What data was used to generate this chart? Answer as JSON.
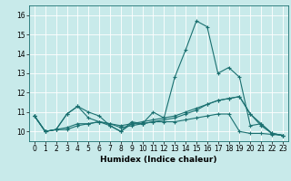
{
  "xlabel": "Humidex (Indice chaleur)",
  "ylabel": "",
  "bg_color": "#c8eaea",
  "line_color": "#1a7070",
  "grid_color": "#ffffff",
  "xlim": [
    -0.5,
    23.5
  ],
  "ylim": [
    9.5,
    16.5
  ],
  "yticks": [
    10,
    11,
    12,
    13,
    14,
    15,
    16
  ],
  "xticks": [
    0,
    1,
    2,
    3,
    4,
    5,
    6,
    7,
    8,
    9,
    10,
    11,
    12,
    13,
    14,
    15,
    16,
    17,
    18,
    19,
    20,
    21,
    22,
    23
  ],
  "series": [
    [
      10.8,
      10.0,
      10.1,
      10.9,
      11.3,
      11.0,
      10.8,
      10.3,
      10.0,
      10.5,
      10.4,
      11.0,
      10.7,
      12.8,
      14.2,
      15.7,
      15.4,
      13.0,
      13.3,
      12.8,
      10.3,
      10.4,
      9.9,
      9.8
    ],
    [
      10.8,
      10.0,
      10.1,
      10.9,
      11.3,
      10.7,
      10.5,
      10.3,
      10.0,
      10.4,
      10.4,
      10.5,
      10.6,
      10.7,
      10.9,
      11.1,
      11.4,
      11.6,
      11.7,
      11.8,
      10.9,
      10.3,
      9.9,
      9.8
    ],
    [
      10.8,
      10.0,
      10.1,
      10.1,
      10.3,
      10.4,
      10.5,
      10.4,
      10.2,
      10.3,
      10.4,
      10.5,
      10.5,
      10.5,
      10.6,
      10.7,
      10.8,
      10.9,
      10.9,
      10.0,
      9.9,
      9.9,
      9.85,
      9.8
    ],
    [
      10.8,
      10.0,
      10.1,
      10.2,
      10.4,
      10.4,
      10.5,
      10.4,
      10.3,
      10.4,
      10.5,
      10.6,
      10.7,
      10.8,
      11.0,
      11.2,
      11.4,
      11.6,
      11.7,
      11.8,
      10.9,
      10.4,
      9.9,
      9.8
    ]
  ]
}
